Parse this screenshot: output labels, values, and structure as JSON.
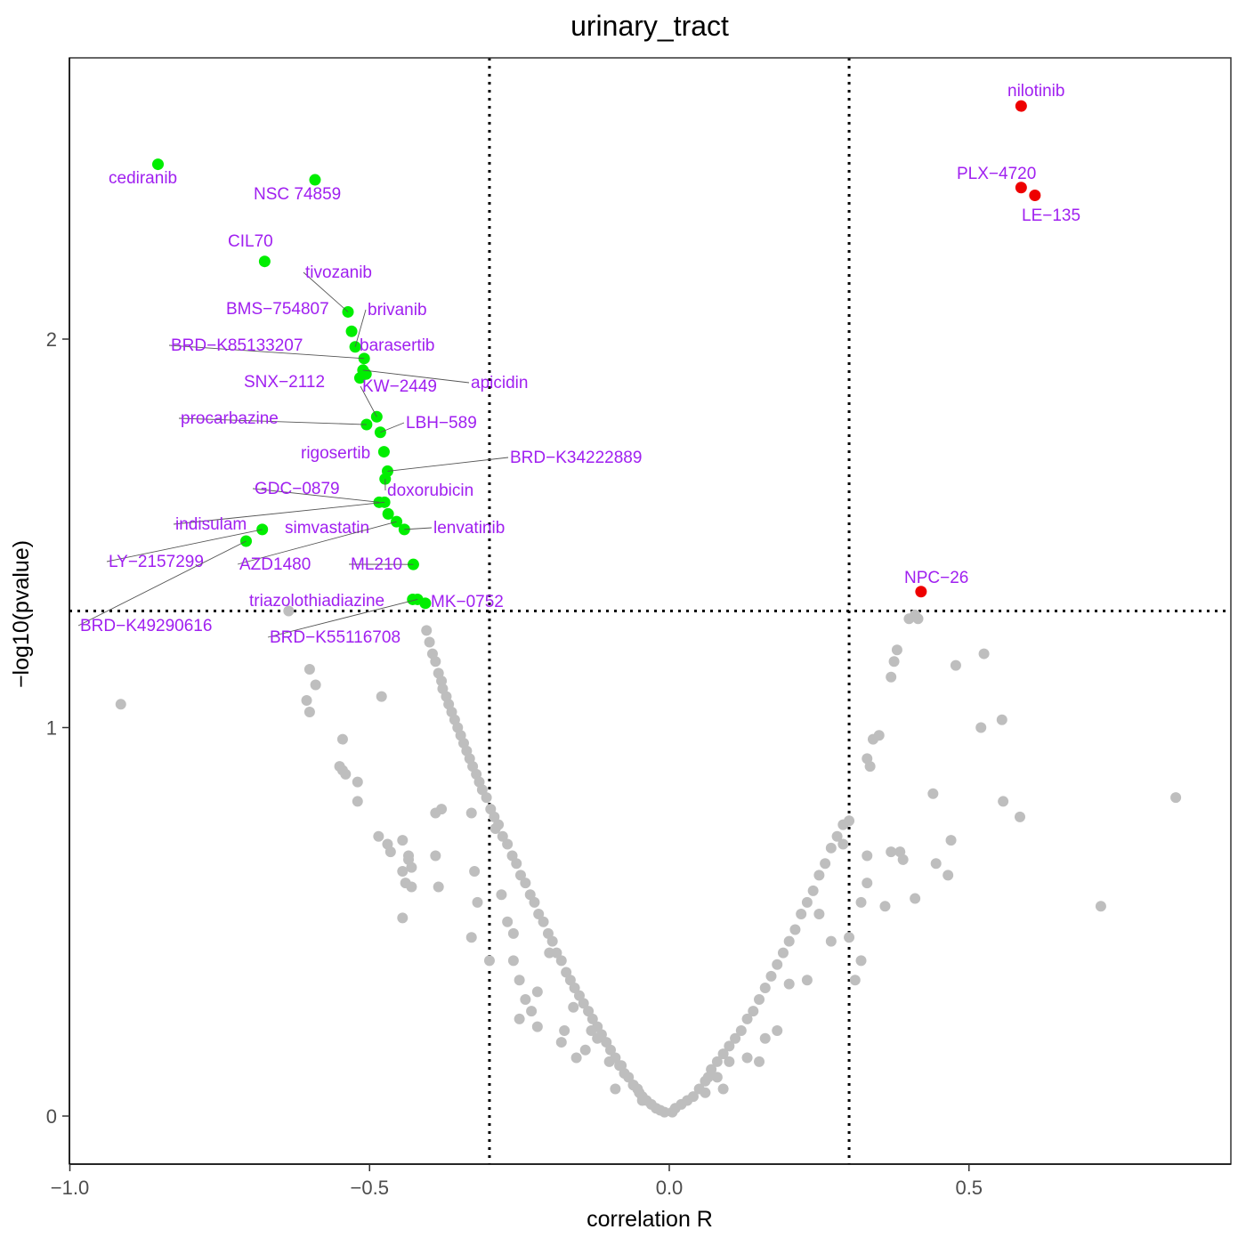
{
  "chart_data": {
    "type": "scatter",
    "title": "urinary_tract",
    "xlabel": "correlation R",
    "ylabel": "−log10(pvalue)",
    "xlim": [
      -1.0,
      0.94
    ],
    "ylim": [
      -0.12,
      2.85
    ],
    "xticks": [
      -1.0,
      -0.5,
      0.0,
      0.5
    ],
    "xtick_labels": [
      "−1.0",
      "−0.5",
      "0.0",
      "0.5"
    ],
    "yticks": [
      0,
      1,
      2
    ],
    "ytick_labels": [
      "0",
      "1",
      "2"
    ],
    "vlines": [
      -0.3,
      0.3
    ],
    "hline": 1.3,
    "grid": false,
    "legend": "none",
    "colors": {
      "negative": "#00ee00",
      "positive": "#ee0000",
      "nonsignificant": "#bebebe",
      "label": "#a020f0"
    },
    "significant_points": [
      {
        "name": "cediranib",
        "x": -0.853,
        "y": 2.45,
        "color": "negative"
      },
      {
        "name": "NSC 74859",
        "x": -0.591,
        "y": 2.41,
        "color": "negative"
      },
      {
        "name": "CIL70",
        "x": -0.675,
        "y": 2.2,
        "color": "negative"
      },
      {
        "name": "tivozanib",
        "x": -0.536,
        "y": 2.07,
        "color": "negative"
      },
      {
        "name": "BMS−754807",
        "x": -0.53,
        "y": 2.02,
        "color": "negative"
      },
      {
        "name": "brivanib",
        "x": -0.524,
        "y": 1.98,
        "color": "negative"
      },
      {
        "name": "BRD−K85133207",
        "x": -0.509,
        "y": 1.95,
        "color": "negative"
      },
      {
        "name": "barasertib",
        "x": -0.506,
        "y": 1.91,
        "color": "negative"
      },
      {
        "name": "SNX−2112",
        "x": -0.516,
        "y": 1.9,
        "color": "negative"
      },
      {
        "name": "apicidin",
        "x": -0.511,
        "y": 1.92,
        "color": "negative"
      },
      {
        "name": "KW−2449",
        "x": -0.488,
        "y": 1.8,
        "color": "negative"
      },
      {
        "name": "procarbazine",
        "x": -0.505,
        "y": 1.78,
        "color": "negative"
      },
      {
        "name": "LBH−589",
        "x": -0.482,
        "y": 1.76,
        "color": "negative"
      },
      {
        "name": "rigosertib",
        "x": -0.476,
        "y": 1.71,
        "color": "negative"
      },
      {
        "name": "BRD−K34222889",
        "x": -0.47,
        "y": 1.66,
        "color": "negative"
      },
      {
        "name": "doxorubicin",
        "x": -0.474,
        "y": 1.64,
        "color": "negative"
      },
      {
        "name": "GDC−0879",
        "x": -0.484,
        "y": 1.58,
        "color": "negative"
      },
      {
        "name": "indisulam",
        "x": -0.475,
        "y": 1.58,
        "color": "negative"
      },
      {
        "name": "simvastatin",
        "x": -0.469,
        "y": 1.55,
        "color": "negative"
      },
      {
        "name": "AZD1480",
        "x": -0.455,
        "y": 1.53,
        "color": "negative"
      },
      {
        "name": "lenvatinib",
        "x": -0.442,
        "y": 1.51,
        "color": "negative"
      },
      {
        "name": "LY−2157299",
        "x": -0.679,
        "y": 1.51,
        "color": "negative"
      },
      {
        "name": "BRD−K49290616",
        "x": -0.706,
        "y": 1.48,
        "color": "negative"
      },
      {
        "name": "ML210",
        "x": -0.427,
        "y": 1.42,
        "color": "negative"
      },
      {
        "name": "triazolothiadiazine",
        "x": -0.428,
        "y": 1.33,
        "color": "negative"
      },
      {
        "name": "MK−0752",
        "x": -0.407,
        "y": 1.32,
        "color": "negative"
      },
      {
        "name": "BRD−K55116708",
        "x": -0.42,
        "y": 1.33,
        "color": "negative"
      },
      {
        "name": "nilotinib",
        "x": 0.587,
        "y": 2.6,
        "color": "positive"
      },
      {
        "name": "PLX−4720",
        "x": 0.587,
        "y": 2.39,
        "color": "positive"
      },
      {
        "name": "LE−135",
        "x": 0.61,
        "y": 2.37,
        "color": "positive"
      },
      {
        "name": "NPC−26",
        "x": 0.42,
        "y": 1.35,
        "color": "positive"
      }
    ],
    "nonsignificant_points": [
      [
        -0.915,
        1.06
      ],
      [
        -0.635,
        1.3
      ],
      [
        -0.6,
        1.15
      ],
      [
        -0.605,
        1.07
      ],
      [
        -0.59,
        1.11
      ],
      [
        -0.6,
        1.04
      ],
      [
        -0.545,
        0.97
      ],
      [
        -0.55,
        0.9
      ],
      [
        -0.545,
        0.89
      ],
      [
        -0.54,
        0.88
      ],
      [
        -0.52,
        0.86
      ],
      [
        -0.52,
        0.81
      ],
      [
        -0.48,
        1.08
      ],
      [
        -0.485,
        0.72
      ],
      [
        -0.47,
        0.7
      ],
      [
        -0.465,
        0.68
      ],
      [
        -0.445,
        0.71
      ],
      [
        -0.435,
        0.67
      ],
      [
        -0.435,
        0.66
      ],
      [
        -0.43,
        0.64
      ],
      [
        -0.445,
        0.63
      ],
      [
        -0.44,
        0.6
      ],
      [
        -0.43,
        0.59
      ],
      [
        -0.445,
        0.51
      ],
      [
        -0.39,
        0.67
      ],
      [
        -0.385,
        0.59
      ],
      [
        -0.39,
        0.78
      ],
      [
        -0.38,
        0.79
      ],
      [
        -0.33,
        0.78
      ],
      [
        -0.33,
        0.46
      ],
      [
        -0.3,
        0.4
      ],
      [
        -0.325,
        0.63
      ],
      [
        -0.32,
        0.55
      ],
      [
        -0.29,
        0.74
      ],
      [
        -0.28,
        0.57
      ],
      [
        -0.27,
        0.5
      ],
      [
        -0.26,
        0.47
      ],
      [
        -0.26,
        0.4
      ],
      [
        -0.25,
        0.35
      ],
      [
        -0.25,
        0.25
      ],
      [
        -0.24,
        0.3
      ],
      [
        -0.23,
        0.27
      ],
      [
        -0.22,
        0.32
      ],
      [
        -0.22,
        0.23
      ],
      [
        -0.2,
        0.42
      ],
      [
        -0.18,
        0.19
      ],
      [
        -0.175,
        0.22
      ],
      [
        -0.16,
        0.28
      ],
      [
        -0.155,
        0.15
      ],
      [
        -0.14,
        0.17
      ],
      [
        -0.13,
        0.22
      ],
      [
        -0.12,
        0.2
      ],
      [
        -0.1,
        0.14
      ],
      [
        -0.09,
        0.07
      ],
      [
        -0.08,
        0.13
      ],
      [
        -0.06,
        0.08
      ],
      [
        -0.05,
        0.06
      ],
      [
        -0.045,
        0.04
      ],
      [
        -0.405,
        1.25
      ],
      [
        -0.4,
        1.22
      ],
      [
        -0.395,
        1.19
      ],
      [
        -0.39,
        1.17
      ],
      [
        -0.385,
        1.14
      ],
      [
        -0.38,
        1.12
      ],
      [
        -0.378,
        1.1
      ],
      [
        -0.372,
        1.08
      ],
      [
        -0.368,
        1.06
      ],
      [
        -0.363,
        1.04
      ],
      [
        -0.358,
        1.02
      ],
      [
        -0.353,
        1.0
      ],
      [
        -0.348,
        0.98
      ],
      [
        -0.343,
        0.96
      ],
      [
        -0.338,
        0.94
      ],
      [
        -0.333,
        0.92
      ],
      [
        -0.328,
        0.9
      ],
      [
        -0.322,
        0.88
      ],
      [
        -0.317,
        0.86
      ],
      [
        -0.312,
        0.84
      ],
      [
        -0.305,
        0.82
      ],
      [
        -0.298,
        0.79
      ],
      [
        -0.292,
        0.77
      ],
      [
        -0.285,
        0.75
      ],
      [
        -0.278,
        0.72
      ],
      [
        -0.27,
        0.7
      ],
      [
        -0.262,
        0.67
      ],
      [
        -0.255,
        0.65
      ],
      [
        -0.248,
        0.62
      ],
      [
        -0.24,
        0.6
      ],
      [
        -0.232,
        0.57
      ],
      [
        -0.225,
        0.55
      ],
      [
        -0.218,
        0.52
      ],
      [
        -0.21,
        0.5
      ],
      [
        -0.202,
        0.47
      ],
      [
        -0.195,
        0.45
      ],
      [
        -0.188,
        0.42
      ],
      [
        -0.18,
        0.4
      ],
      [
        -0.172,
        0.37
      ],
      [
        -0.165,
        0.35
      ],
      [
        -0.158,
        0.33
      ],
      [
        -0.15,
        0.31
      ],
      [
        -0.143,
        0.29
      ],
      [
        -0.135,
        0.27
      ],
      [
        -0.128,
        0.25
      ],
      [
        -0.12,
        0.23
      ],
      [
        -0.113,
        0.21
      ],
      [
        -0.105,
        0.19
      ],
      [
        -0.098,
        0.17
      ],
      [
        -0.09,
        0.15
      ],
      [
        -0.083,
        0.13
      ],
      [
        -0.075,
        0.11
      ],
      [
        -0.068,
        0.1
      ],
      [
        -0.06,
        0.08
      ],
      [
        -0.053,
        0.07
      ],
      [
        -0.045,
        0.05
      ],
      [
        -0.038,
        0.04
      ],
      [
        -0.03,
        0.03
      ],
      [
        -0.022,
        0.02
      ],
      [
        -0.015,
        0.015
      ],
      [
        -0.008,
        0.01
      ],
      [
        0.005,
        0.01
      ],
      [
        0.01,
        0.02
      ],
      [
        0.02,
        0.03
      ],
      [
        0.03,
        0.04
      ],
      [
        0.04,
        0.05
      ],
      [
        0.05,
        0.07
      ],
      [
        0.06,
        0.09
      ],
      [
        0.065,
        0.1
      ],
      [
        0.07,
        0.12
      ],
      [
        0.08,
        0.14
      ],
      [
        0.09,
        0.16
      ],
      [
        0.1,
        0.18
      ],
      [
        0.11,
        0.2
      ],
      [
        0.12,
        0.22
      ],
      [
        0.13,
        0.25
      ],
      [
        0.14,
        0.27
      ],
      [
        0.15,
        0.3
      ],
      [
        0.16,
        0.33
      ],
      [
        0.17,
        0.36
      ],
      [
        0.18,
        0.39
      ],
      [
        0.19,
        0.42
      ],
      [
        0.2,
        0.45
      ],
      [
        0.21,
        0.48
      ],
      [
        0.22,
        0.52
      ],
      [
        0.23,
        0.55
      ],
      [
        0.24,
        0.58
      ],
      [
        0.25,
        0.62
      ],
      [
        0.26,
        0.65
      ],
      [
        0.27,
        0.69
      ],
      [
        0.28,
        0.72
      ],
      [
        0.29,
        0.75
      ],
      [
        0.06,
        0.06
      ],
      [
        0.08,
        0.1
      ],
      [
        0.09,
        0.07
      ],
      [
        0.1,
        0.14
      ],
      [
        0.13,
        0.15
      ],
      [
        0.15,
        0.14
      ],
      [
        0.16,
        0.2
      ],
      [
        0.18,
        0.22
      ],
      [
        0.2,
        0.34
      ],
      [
        0.23,
        0.35
      ],
      [
        0.25,
        0.52
      ],
      [
        0.27,
        0.45
      ],
      [
        0.29,
        0.7
      ],
      [
        0.3,
        0.76
      ],
      [
        0.3,
        0.46
      ],
      [
        0.31,
        0.35
      ],
      [
        0.32,
        0.4
      ],
      [
        0.32,
        0.55
      ],
      [
        0.33,
        0.6
      ],
      [
        0.33,
        0.67
      ],
      [
        0.33,
        0.92
      ],
      [
        0.335,
        0.9
      ],
      [
        0.34,
        0.97
      ],
      [
        0.35,
        0.98
      ],
      [
        0.36,
        0.54
      ],
      [
        0.37,
        1.13
      ],
      [
        0.375,
        1.17
      ],
      [
        0.38,
        1.2
      ],
      [
        0.37,
        0.68
      ],
      [
        0.385,
        0.68
      ],
      [
        0.39,
        0.66
      ],
      [
        0.41,
        0.56
      ],
      [
        0.4,
        1.28
      ],
      [
        0.41,
        1.29
      ],
      [
        0.415,
        1.28
      ],
      [
        0.44,
        0.83
      ],
      [
        0.445,
        0.65
      ],
      [
        0.47,
        0.71
      ],
      [
        0.465,
        0.62
      ],
      [
        0.478,
        1.16
      ],
      [
        0.52,
        1.0
      ],
      [
        0.525,
        1.19
      ],
      [
        0.555,
        1.02
      ],
      [
        0.557,
        0.81
      ],
      [
        0.585,
        0.77
      ],
      [
        0.72,
        0.54
      ],
      [
        0.845,
        0.82
      ]
    ]
  }
}
